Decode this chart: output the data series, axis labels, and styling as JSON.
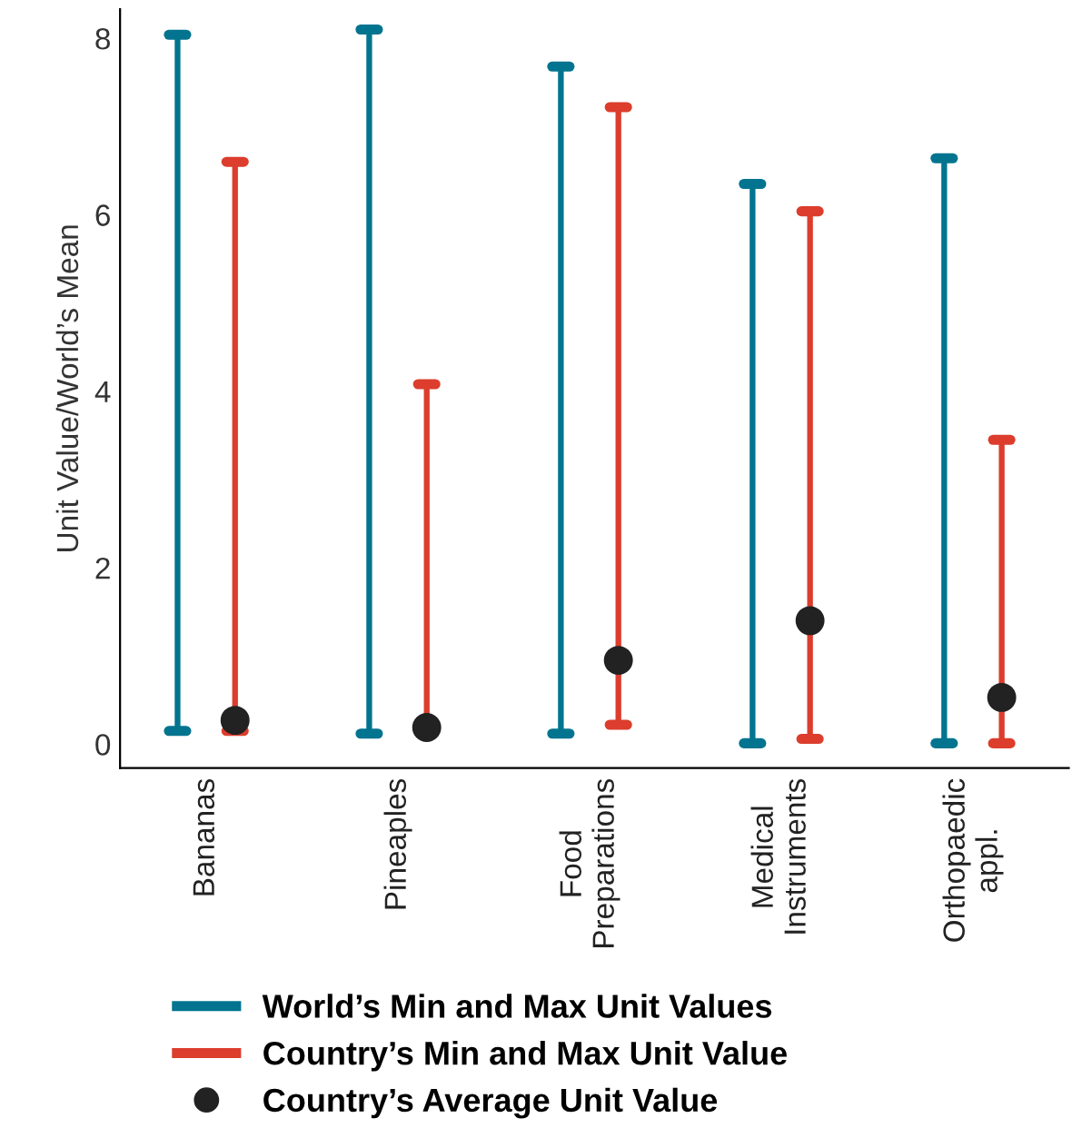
{
  "chart_data": {
    "type": "bar",
    "ylabel": "Unit Value/World’s Mean",
    "categories": [
      "Bananas",
      "Pineaples",
      "Food\nPreparations",
      "Medical\nInstruments",
      "Orthopaedic\nappl."
    ],
    "series": [
      {
        "name": "World’s Min and Max Unit Values",
        "color": "#02748f",
        "base": [
          0.15,
          0.12,
          0.12,
          0.01,
          0.01
        ],
        "values": [
          7.89,
          7.98,
          7.56,
          6.34,
          6.63
        ]
      },
      {
        "name": "Country’s Min and Max Unit Value",
        "color": "#dc3d2d",
        "base": [
          0.15,
          0.16,
          0.22,
          0.06,
          0.01
        ],
        "values": [
          6.45,
          3.92,
          7.0,
          5.98,
          3.44
        ]
      },
      {
        "name": "Country’s Average Unit Value",
        "type": "scatter",
        "color": "#222222",
        "marker": "circle",
        "x": [
          "Bananas",
          "Pineaples",
          "Food\nPreparations",
          "Medical\nInstruments",
          "Orthopaedic\nappl."
        ],
        "values": [
          0.27,
          0.19,
          0.95,
          1.4,
          0.53
        ]
      }
    ],
    "ylim": [
      -0.27,
      8.33
    ],
    "yticks": [
      0,
      2,
      4,
      6,
      8
    ],
    "grid": false,
    "legend": "bottom"
  }
}
